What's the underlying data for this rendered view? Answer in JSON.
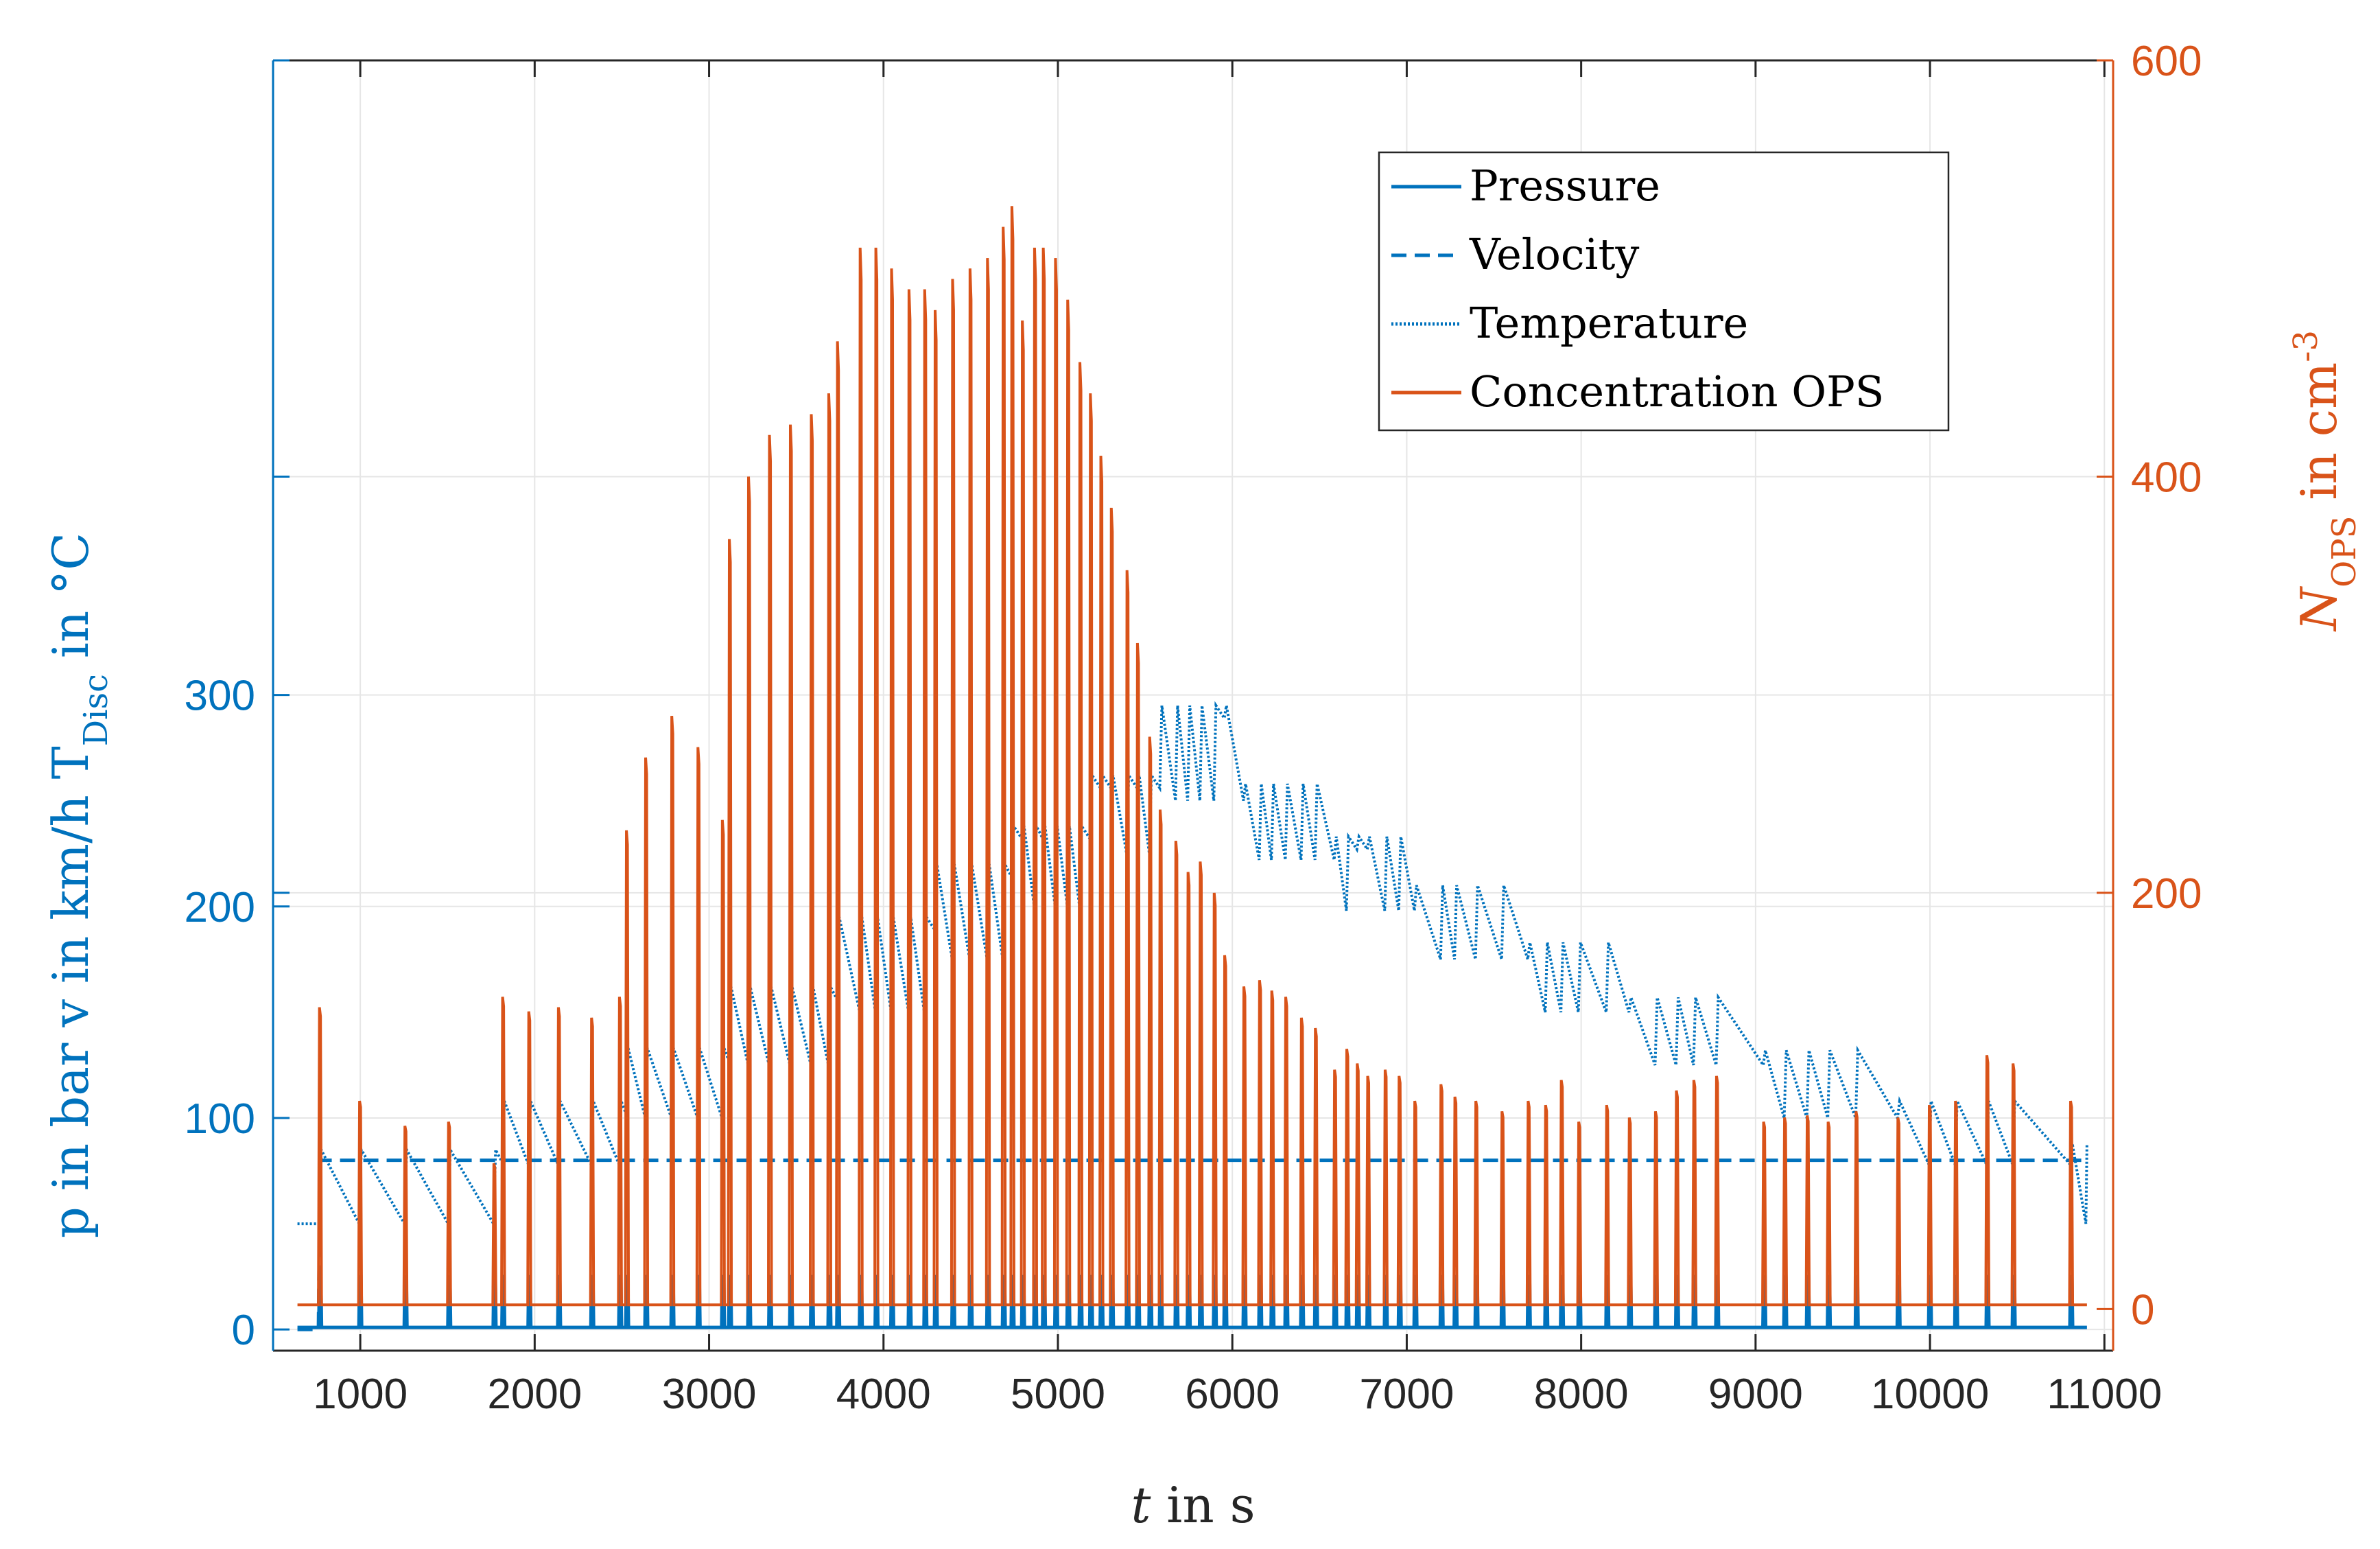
{
  "chart_data": {
    "type": "line",
    "x": {
      "label_var": "t",
      "label_rest": " in s",
      "ticks": [
        1000,
        2000,
        3000,
        4000,
        5000,
        6000,
        7000,
        8000,
        9000,
        10000,
        11000
      ],
      "range": [
        500,
        11050
      ]
    },
    "y_left": {
      "label": "p in bar v in km/h T",
      "label_sub": "Disc",
      "label_tail": " in °C",
      "ticks": [
        0,
        100,
        200,
        300
      ],
      "range": [
        -10,
        600
      ],
      "color": "#0072BD"
    },
    "y_right": {
      "label": "N",
      "label_sub": "OPS",
      "label_tail": " in cm",
      "label_sup": "-3",
      "ticks": [
        0,
        200,
        400,
        600
      ],
      "range": [
        -20,
        600
      ],
      "color": "#D95319"
    },
    "legend": {
      "position": "top-right",
      "entries": [
        {
          "name": "Pressure",
          "style": "solid",
          "color": "#0072BD"
        },
        {
          "name": "Velocity",
          "style": "dashed",
          "color": "#0072BD"
        },
        {
          "name": "Temperature",
          "style": "dotted",
          "color": "#0072BD"
        },
        {
          "name": "Concentration OPS",
          "style": "solid",
          "color": "#D95319"
        }
      ]
    },
    "grid": true,
    "series": [
      {
        "name": "Pressure",
        "axis": "left",
        "baseline": 1,
        "brake_peak": 25,
        "brake_times": [
          770,
          1000,
          1260,
          1510,
          1770,
          1820,
          1970,
          2140,
          2330,
          2490,
          2530,
          2640,
          2790,
          2940,
          3080,
          3120,
          3230,
          3350,
          3470,
          3590,
          3690,
          3740,
          3870,
          3960,
          4050,
          4150,
          4240,
          4300,
          4400,
          4500,
          4600,
          4690,
          4740,
          4800,
          4870,
          4920,
          4990,
          5060,
          5130,
          5190,
          5250,
          5310,
          5400,
          5460,
          5530,
          5590,
          5680,
          5750,
          5820,
          5900,
          5960,
          6070,
          6160,
          6230,
          6310,
          6400,
          6480,
          6590,
          6660,
          6720,
          6780,
          6880,
          6960,
          7050,
          7200,
          7280,
          7400,
          7550,
          7700,
          7800,
          7890,
          7990,
          8150,
          8280,
          8430,
          8550,
          8650,
          8780,
          9050,
          9170,
          9300,
          9420,
          9580,
          9820,
          10000,
          10150,
          10330,
          10480,
          10810
        ]
      },
      {
        "name": "Velocity",
        "axis": "left",
        "points": [
          [
            640,
            0
          ],
          [
            760,
            0
          ],
          [
            770,
            80
          ],
          [
            10900,
            80
          ]
        ]
      },
      {
        "name": "Temperature",
        "axis": "left",
        "levels": [
          {
            "start": 500,
            "high": 85,
            "low": 50
          },
          {
            "start": 1820,
            "high": 108,
            "low": 78
          },
          {
            "start": 2530,
            "high": 133,
            "low": 100
          },
          {
            "start": 3120,
            "high": 162,
            "low": 125
          },
          {
            "start": 3740,
            "high": 195,
            "low": 150
          },
          {
            "start": 4300,
            "high": 220,
            "low": 175
          },
          {
            "start": 4740,
            "high": 238,
            "low": 200
          },
          {
            "start": 5190,
            "high": 262,
            "low": 225
          },
          {
            "start": 5590,
            "high": 295,
            "low": 250
          },
          {
            "start": 6070,
            "high": 258,
            "low": 222
          },
          {
            "start": 6590,
            "high": 233,
            "low": 198
          },
          {
            "start": 7050,
            "high": 210,
            "low": 175
          },
          {
            "start": 7700,
            "high": 183,
            "low": 150
          },
          {
            "start": 8280,
            "high": 157,
            "low": 125
          },
          {
            "start": 9050,
            "high": 132,
            "low": 100
          },
          {
            "start": 9820,
            "high": 108,
            "low": 78
          },
          {
            "start": 10810,
            "high": 88,
            "low": 50
          }
        ],
        "start_point": [
          640,
          50
        ],
        "end_time": 10900
      },
      {
        "name": "Concentration OPS",
        "axis": "right",
        "baseline": 2,
        "peaks": [
          [
            770,
            145
          ],
          [
            1000,
            100
          ],
          [
            1260,
            88
          ],
          [
            1510,
            90
          ],
          [
            1770,
            70
          ],
          [
            1820,
            150
          ],
          [
            1970,
            143
          ],
          [
            2140,
            145
          ],
          [
            2330,
            140
          ],
          [
            2490,
            150
          ],
          [
            2530,
            230
          ],
          [
            2640,
            265
          ],
          [
            2790,
            285
          ],
          [
            2940,
            270
          ],
          [
            3080,
            235
          ],
          [
            3120,
            370
          ],
          [
            3230,
            400
          ],
          [
            3350,
            420
          ],
          [
            3470,
            425
          ],
          [
            3590,
            430
          ],
          [
            3690,
            440
          ],
          [
            3740,
            465
          ],
          [
            3870,
            510
          ],
          [
            3960,
            510
          ],
          [
            4050,
            500
          ],
          [
            4150,
            490
          ],
          [
            4240,
            490
          ],
          [
            4300,
            480
          ],
          [
            4400,
            495
          ],
          [
            4500,
            500
          ],
          [
            4600,
            505
          ],
          [
            4690,
            520
          ],
          [
            4740,
            530
          ],
          [
            4800,
            475
          ],
          [
            4870,
            510
          ],
          [
            4920,
            510
          ],
          [
            4990,
            505
          ],
          [
            5060,
            485
          ],
          [
            5130,
            455
          ],
          [
            5190,
            440
          ],
          [
            5250,
            410
          ],
          [
            5310,
            385
          ],
          [
            5400,
            355
          ],
          [
            5460,
            320
          ],
          [
            5530,
            275
          ],
          [
            5590,
            240
          ],
          [
            5680,
            225
          ],
          [
            5750,
            210
          ],
          [
            5820,
            215
          ],
          [
            5900,
            200
          ],
          [
            5960,
            170
          ],
          [
            6070,
            155
          ],
          [
            6160,
            158
          ],
          [
            6230,
            153
          ],
          [
            6310,
            150
          ],
          [
            6400,
            140
          ],
          [
            6480,
            135
          ],
          [
            6590,
            115
          ],
          [
            6660,
            125
          ],
          [
            6720,
            118
          ],
          [
            6780,
            112
          ],
          [
            6880,
            115
          ],
          [
            6960,
            112
          ],
          [
            7050,
            100
          ],
          [
            7200,
            108
          ],
          [
            7280,
            102
          ],
          [
            7400,
            100
          ],
          [
            7550,
            95
          ],
          [
            7700,
            100
          ],
          [
            7800,
            98
          ],
          [
            7890,
            110
          ],
          [
            7990,
            90
          ],
          [
            8150,
            98
          ],
          [
            8280,
            92
          ],
          [
            8430,
            95
          ],
          [
            8550,
            105
          ],
          [
            8650,
            110
          ],
          [
            8780,
            112
          ],
          [
            9050,
            90
          ],
          [
            9170,
            92
          ],
          [
            9300,
            93
          ],
          [
            9420,
            90
          ],
          [
            9580,
            95
          ],
          [
            9820,
            92
          ],
          [
            10000,
            98
          ],
          [
            10150,
            100
          ],
          [
            10330,
            122
          ],
          [
            10480,
            118
          ],
          [
            10810,
            100
          ]
        ]
      }
    ]
  }
}
